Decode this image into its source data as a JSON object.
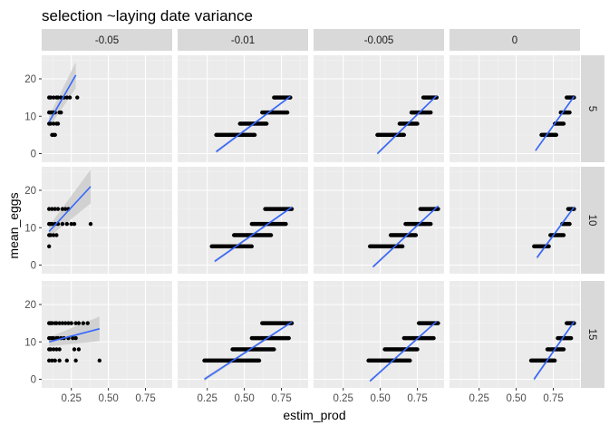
{
  "chart_data": {
    "type": "scatter",
    "title": "selection ~laying date variance",
    "xlabel": "estim_prod",
    "ylabel": "mean_eggs",
    "facet_cols": [
      "-0.05",
      "-0.01",
      "-0.005",
      "0"
    ],
    "facet_rows": [
      "5",
      "10",
      "15"
    ],
    "xlim": [
      0.05,
      0.93
    ],
    "ylim": [
      -2.3,
      26.3
    ],
    "x_ticks": [
      0.25,
      0.5,
      0.75
    ],
    "x_tick_labels": [
      "0.25",
      "0.50",
      "0.75"
    ],
    "y_ticks": [
      0,
      10,
      20
    ],
    "y_tick_labels": [
      "0",
      "10",
      "20"
    ],
    "y_levels": [
      5,
      8,
      11,
      15
    ],
    "grid": true,
    "smooth": "lm",
    "colors": {
      "panel_bg": "#ebebeb",
      "strip_bg": "#d9d9d9",
      "grid_major": "#ffffff",
      "grid_minor": "#f4f4f4",
      "points": "#000000",
      "fit_line": "#3366ff",
      "ribbon": "#cccccc"
    },
    "panels": [
      {
        "row": "5",
        "col": "-0.05",
        "clusters": [
          {
            "y": 5,
            "x": [
              0.12,
              0.13,
              0.14
            ]
          },
          {
            "y": 8,
            "x": [
              0.1,
              0.11,
              0.13,
              0.15,
              0.16
            ]
          },
          {
            "y": 11,
            "x": [
              0.1,
              0.11,
              0.12,
              0.13,
              0.14,
              0.17,
              0.18
            ]
          },
          {
            "y": 15,
            "x": [
              0.1,
              0.11,
              0.13,
              0.15,
              0.16,
              0.18,
              0.2,
              0.22,
              0.24,
              0.29
            ]
          }
        ],
        "fit": {
          "x": [
            0.1,
            0.28
          ],
          "y": [
            8.5,
            21.0
          ],
          "se_x": [
            0.1,
            0.28
          ],
          "se_hi": [
            10.0,
            24.5
          ],
          "se_lo": [
            7.0,
            17.5
          ]
        }
      },
      {
        "row": "5",
        "col": "-0.01",
        "clusters": [
          {
            "y": 5,
            "range": [
              0.31,
              0.57
            ]
          },
          {
            "y": 8,
            "range": [
              0.47,
              0.65
            ]
          },
          {
            "y": 11,
            "range": [
              0.62,
              0.79
            ]
          },
          {
            "y": 15,
            "range": [
              0.7,
              0.81
            ]
          }
        ],
        "fit": {
          "x": [
            0.31,
            0.81
          ],
          "y": [
            0.5,
            15.3
          ],
          "se_x": [
            0.31,
            0.81
          ],
          "se_hi": [
            0.9,
            15.6
          ],
          "se_lo": [
            0.1,
            15.0
          ]
        }
      },
      {
        "row": "5",
        "col": "-0.005",
        "clusters": [
          {
            "y": 5,
            "range": [
              0.48,
              0.66
            ]
          },
          {
            "y": 8,
            "range": [
              0.63,
              0.75
            ]
          },
          {
            "y": 11,
            "range": [
              0.71,
              0.84
            ]
          },
          {
            "y": 15,
            "range": [
              0.79,
              0.88
            ]
          }
        ],
        "fit": {
          "x": [
            0.48,
            0.88
          ],
          "y": [
            0.0,
            15.5
          ],
          "se_x": [
            0.48,
            0.88
          ],
          "se_hi": [
            0.4,
            15.8
          ],
          "se_lo": [
            -0.4,
            15.2
          ]
        }
      },
      {
        "row": "5",
        "col": "0",
        "clusters": [
          {
            "y": 5,
            "range": [
              0.67,
              0.77
            ]
          },
          {
            "y": 8,
            "range": [
              0.76,
              0.82
            ]
          },
          {
            "y": 11,
            "range": [
              0.8,
              0.86
            ]
          },
          {
            "y": 15,
            "range": [
              0.84,
              0.89
            ]
          }
        ],
        "fit": {
          "x": [
            0.63,
            0.89
          ],
          "y": [
            0.8,
            15.3
          ],
          "se_x": [
            0.63,
            0.89
          ],
          "se_hi": [
            1.2,
            15.6
          ],
          "se_lo": [
            0.4,
            15.0
          ]
        }
      },
      {
        "row": "10",
        "col": "-0.05",
        "clusters": [
          {
            "y": 5,
            "x": [
              0.1
            ]
          },
          {
            "y": 8,
            "x": [
              0.1,
              0.11,
              0.13,
              0.15
            ]
          },
          {
            "y": 11,
            "x": [
              0.1,
              0.11,
              0.12,
              0.14,
              0.16,
              0.19,
              0.22,
              0.25,
              0.27,
              0.38
            ]
          },
          {
            "y": 15,
            "x": [
              0.1,
              0.12,
              0.14,
              0.16,
              0.19,
              0.21,
              0.23
            ]
          }
        ],
        "fit": {
          "x": [
            0.1,
            0.38
          ],
          "y": [
            9.0,
            21.0
          ],
          "se_x": [
            0.1,
            0.38
          ],
          "se_hi": [
            10.5,
            25.5
          ],
          "se_lo": [
            7.5,
            16.5
          ]
        }
      },
      {
        "row": "10",
        "col": "-0.01",
        "clusters": [
          {
            "y": 5,
            "range": [
              0.28,
              0.55
            ]
          },
          {
            "y": 8,
            "range": [
              0.43,
              0.68
            ]
          },
          {
            "y": 11,
            "range": [
              0.55,
              0.78
            ]
          },
          {
            "y": 15,
            "range": [
              0.64,
              0.82
            ]
          }
        ],
        "fit": {
          "x": [
            0.3,
            0.82
          ],
          "y": [
            1.0,
            15.5
          ],
          "se_x": [
            0.3,
            0.82
          ],
          "se_hi": [
            1.4,
            15.8
          ],
          "se_lo": [
            0.6,
            15.2
          ]
        }
      },
      {
        "row": "10",
        "col": "-0.005",
        "clusters": [
          {
            "y": 5,
            "range": [
              0.43,
              0.65
            ]
          },
          {
            "y": 8,
            "range": [
              0.57,
              0.74
            ]
          },
          {
            "y": 11,
            "range": [
              0.67,
              0.84
            ]
          },
          {
            "y": 15,
            "range": [
              0.77,
              0.89
            ]
          }
        ],
        "fit": {
          "x": [
            0.45,
            0.89
          ],
          "y": [
            -0.5,
            15.8
          ],
          "se_x": [
            0.45,
            0.89
          ],
          "se_hi": [
            -0.1,
            16.1
          ],
          "se_lo": [
            -0.9,
            15.5
          ]
        }
      },
      {
        "row": "10",
        "col": "0",
        "clusters": [
          {
            "y": 5,
            "range": [
              0.62,
              0.72
            ]
          },
          {
            "y": 8,
            "range": [
              0.73,
              0.82
            ]
          },
          {
            "y": 11,
            "range": [
              0.81,
              0.86
            ]
          },
          {
            "y": 15,
            "range": [
              0.85,
              0.89
            ]
          }
        ],
        "fit": {
          "x": [
            0.64,
            0.89
          ],
          "y": [
            2.0,
            15.5
          ],
          "se_x": [
            0.64,
            0.89
          ],
          "se_hi": [
            2.5,
            15.9
          ],
          "se_lo": [
            1.5,
            15.1
          ]
        }
      },
      {
        "row": "15",
        "col": "-0.05",
        "clusters": [
          {
            "y": 5,
            "x": [
              0.1,
              0.12,
              0.14,
              0.17,
              0.22,
              0.28,
              0.44
            ]
          },
          {
            "y": 8,
            "x": [
              0.1,
              0.11,
              0.13,
              0.15,
              0.17,
              0.27,
              0.3
            ]
          },
          {
            "y": 11,
            "x": [
              0.1,
              0.11,
              0.12,
              0.13,
              0.15,
              0.16,
              0.18,
              0.2,
              0.23,
              0.26,
              0.28
            ]
          },
          {
            "y": 15,
            "x": [
              0.1,
              0.11,
              0.12,
              0.14,
              0.15,
              0.17,
              0.19,
              0.21,
              0.23,
              0.25,
              0.28,
              0.3,
              0.33,
              0.36
            ]
          }
        ],
        "fit": {
          "x": [
            0.1,
            0.44
          ],
          "y": [
            10.0,
            13.5
          ],
          "se_x": [
            0.1,
            0.44
          ],
          "se_hi": [
            11.2,
            16.8
          ],
          "se_lo": [
            8.8,
            10.2
          ]
        }
      },
      {
        "row": "15",
        "col": "-0.01",
        "clusters": [
          {
            "y": 5,
            "range": [
              0.23,
              0.6
            ]
          },
          {
            "y": 8,
            "range": [
              0.42,
              0.7
            ]
          },
          {
            "y": 11,
            "range": [
              0.55,
              0.8
            ]
          },
          {
            "y": 15,
            "range": [
              0.62,
              0.82
            ]
          }
        ],
        "fit": {
          "x": [
            0.23,
            0.82
          ],
          "y": [
            0.0,
            15.3
          ],
          "se_x": [
            0.23,
            0.82
          ],
          "se_hi": [
            0.5,
            15.6
          ],
          "se_lo": [
            -0.5,
            15.0
          ]
        }
      },
      {
        "row": "15",
        "col": "-0.005",
        "clusters": [
          {
            "y": 5,
            "range": [
              0.42,
              0.7
            ]
          },
          {
            "y": 8,
            "range": [
              0.53,
              0.75
            ]
          },
          {
            "y": 11,
            "range": [
              0.66,
              0.86
            ]
          },
          {
            "y": 15,
            "range": [
              0.76,
              0.89
            ]
          }
        ],
        "fit": {
          "x": [
            0.43,
            0.88
          ],
          "y": [
            -0.5,
            15.5
          ],
          "se_x": [
            0.43,
            0.88
          ],
          "se_hi": [
            -0.1,
            15.8
          ],
          "se_lo": [
            -0.9,
            15.2
          ]
        }
      },
      {
        "row": "15",
        "col": "0",
        "clusters": [
          {
            "y": 5,
            "range": [
              0.6,
              0.76
            ]
          },
          {
            "y": 8,
            "range": [
              0.71,
              0.82
            ]
          },
          {
            "y": 11,
            "range": [
              0.78,
              0.87
            ]
          },
          {
            "y": 15,
            "range": [
              0.84,
              0.89
            ]
          }
        ],
        "fit": {
          "x": [
            0.62,
            0.89
          ],
          "y": [
            0.0,
            15.4
          ],
          "se_x": [
            0.62,
            0.89
          ],
          "se_hi": [
            0.5,
            15.8
          ],
          "se_lo": [
            -0.5,
            15.0
          ]
        }
      }
    ]
  }
}
